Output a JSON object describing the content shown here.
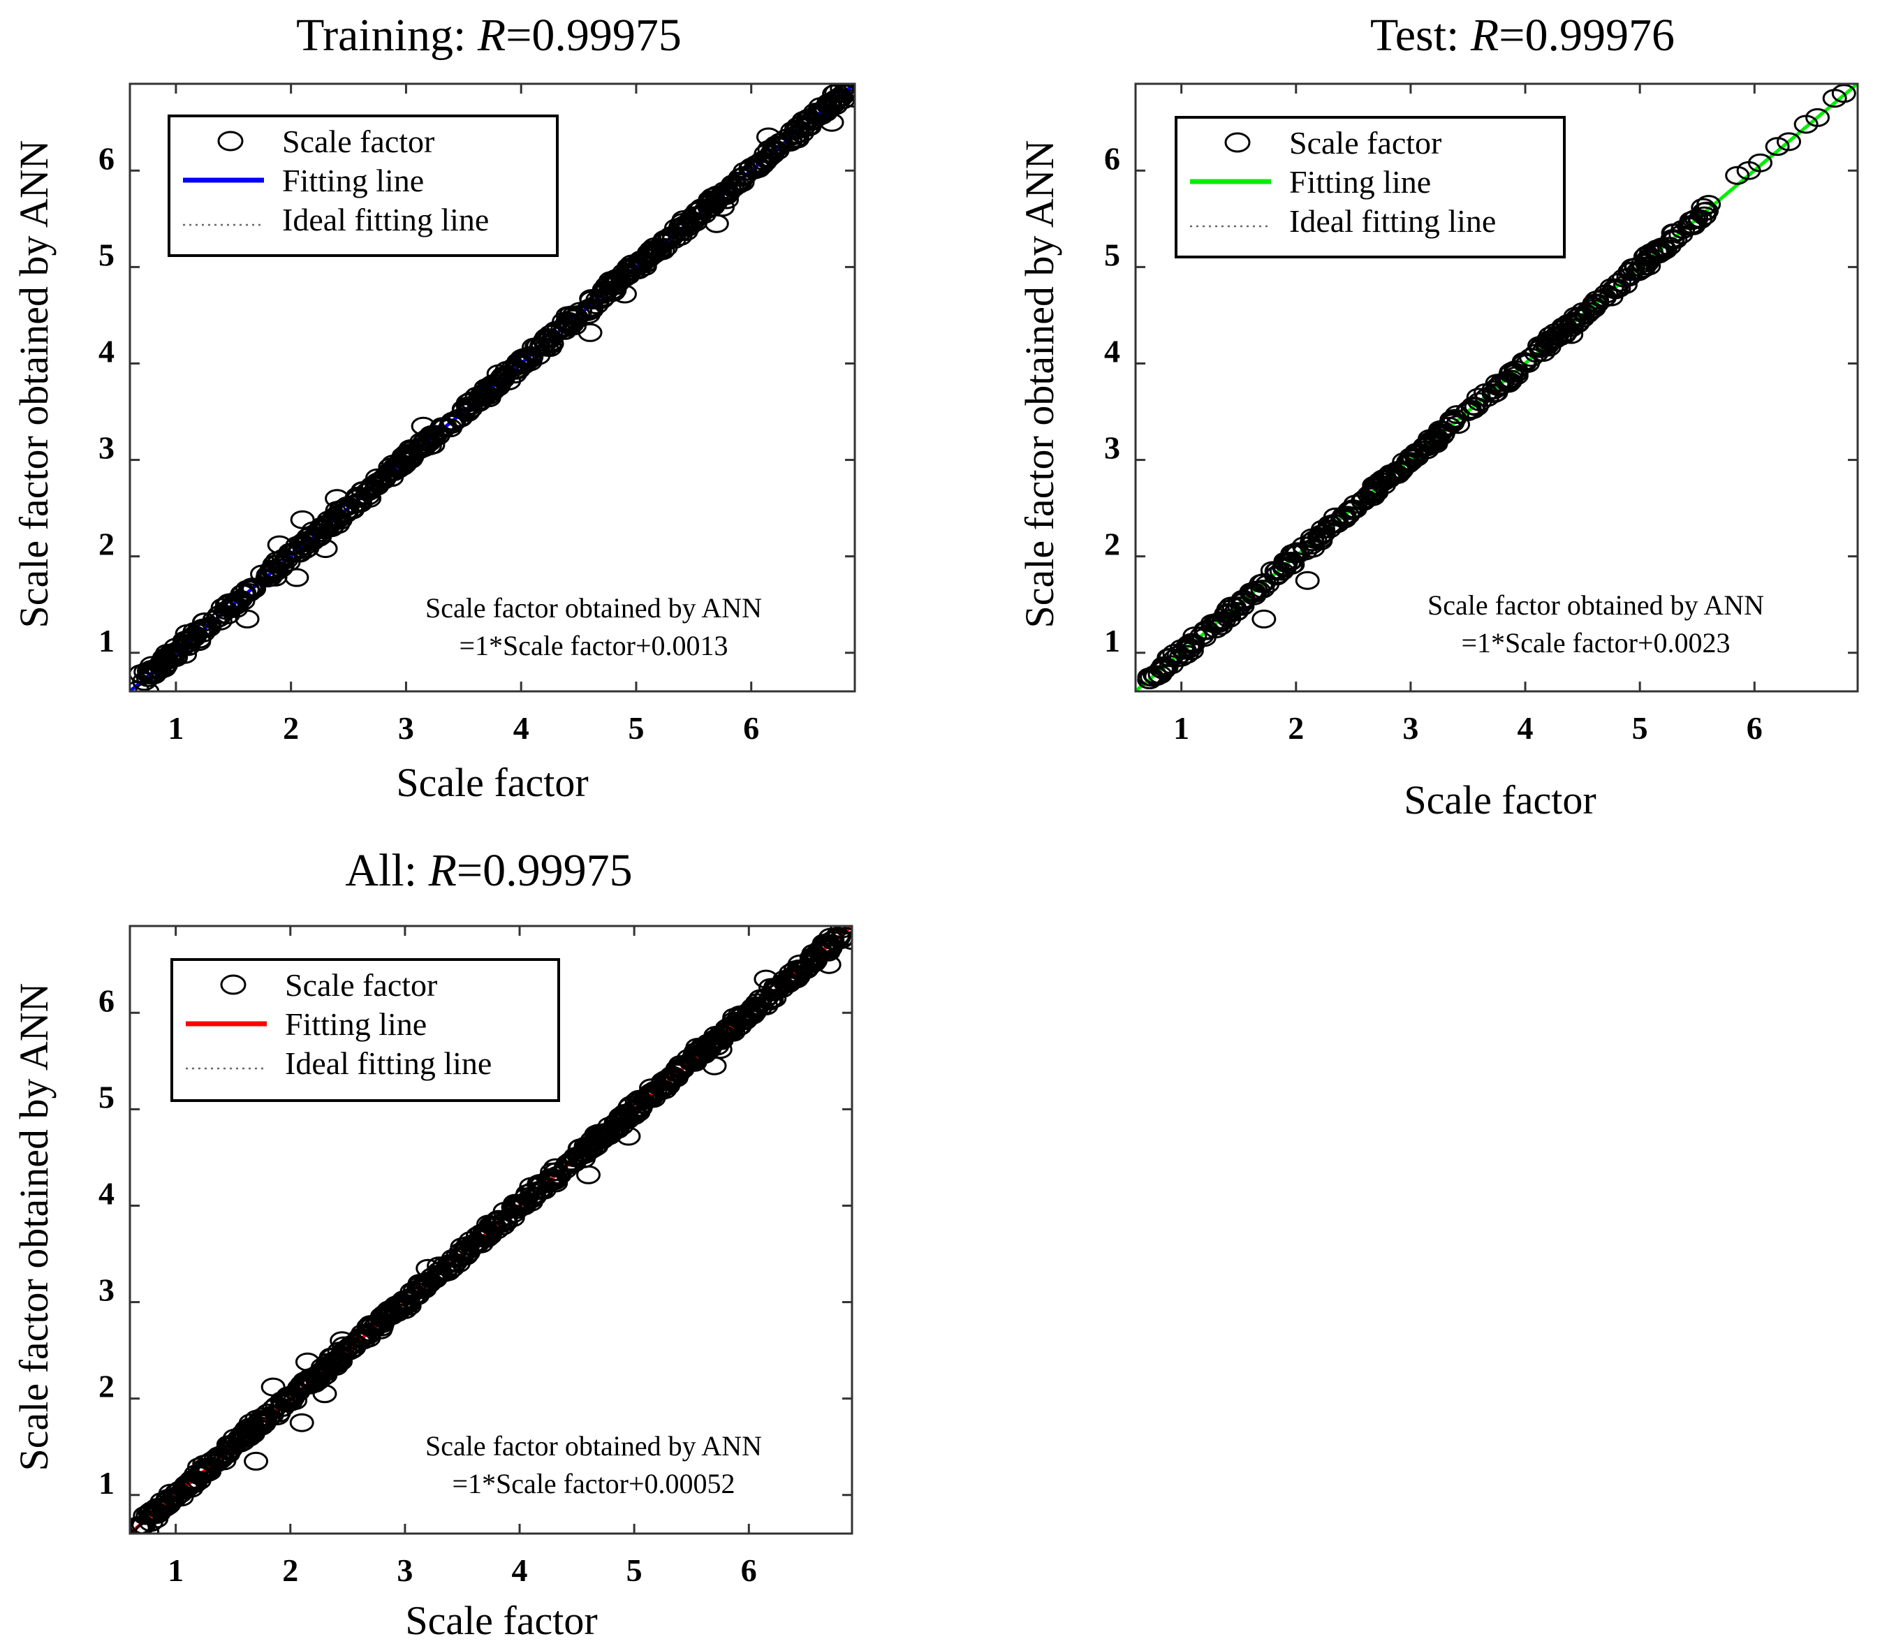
{
  "figure": {
    "background": "#ffffff"
  },
  "chart_data": [
    {
      "id": "training",
      "type": "scatter",
      "title_prefix": "Training: ",
      "title_var": "R",
      "title_value": "=0.99975",
      "xlabel": "Scale factor",
      "ylabel": "Scale factor obtained by ANN",
      "xlim": [
        0.6,
        6.9
      ],
      "ylim": [
        0.6,
        6.9
      ],
      "xticks": [
        1,
        2,
        3,
        4,
        5,
        6
      ],
      "yticks": [
        1,
        2,
        3,
        4,
        5,
        6
      ],
      "legend": {
        "placement": "top-left",
        "entries": [
          {
            "label": "Scale factor",
            "marker": "circle"
          },
          {
            "label": "Fitting line",
            "color": "#0000ff"
          },
          {
            "label": "Ideal fitting line",
            "style": "dotted"
          }
        ]
      },
      "equation": {
        "line1": "Scale factor obtained by ANN",
        "line2": "=1*Scale factor+0.0013"
      },
      "fit": {
        "slope": 1,
        "intercept": 0.0013,
        "color": "#0000ff"
      },
      "points": {
        "x_range": [
          0.65,
          6.85
        ],
        "count": 620,
        "noise": 0.035,
        "seed": 11,
        "outliers": [
          [
            1.62,
            1.35
          ],
          [
            2.05,
            1.78
          ],
          [
            2.1,
            2.38
          ],
          [
            1.9,
            2.12
          ],
          [
            5.75,
            5.62
          ],
          [
            5.7,
            5.45
          ],
          [
            4.6,
            4.32
          ],
          [
            4.9,
            4.72
          ],
          [
            3.15,
            3.35
          ],
          [
            2.4,
            2.6
          ],
          [
            6.15,
            6.35
          ],
          [
            6.7,
            6.5
          ],
          [
            6.9,
            6.75
          ],
          [
            0.75,
            0.6
          ],
          [
            1.25,
            1.32
          ],
          [
            2.3,
            2.08
          ]
        ]
      }
    },
    {
      "id": "test",
      "type": "scatter",
      "title_prefix": "Test: ",
      "title_var": "R",
      "title_value": "=0.99976",
      "xlabel": "Scale factor",
      "ylabel": "Scale factor obtained by ANN",
      "xlim": [
        0.6,
        6.9
      ],
      "ylim": [
        0.6,
        6.9
      ],
      "xticks": [
        1,
        2,
        3,
        4,
        5,
        6
      ],
      "yticks": [
        1,
        2,
        3,
        4,
        5,
        6
      ],
      "legend": {
        "placement": "top-left",
        "entries": [
          {
            "label": "Scale factor",
            "marker": "circle"
          },
          {
            "label": "Fitting line",
            "color": "#00ee00"
          },
          {
            "label": "Ideal fitting line",
            "style": "dotted"
          }
        ]
      },
      "equation": {
        "line1": "Scale factor obtained by ANN",
        "line2": "=1*Scale factor+0.0023"
      },
      "fit": {
        "slope": 1,
        "intercept": 0.0023,
        "color": "#00ee00"
      },
      "points": {
        "x_range": [
          0.7,
          5.6
        ],
        "count": 340,
        "noise": 0.03,
        "seed": 23,
        "outliers": [
          [
            1.72,
            1.35
          ],
          [
            2.1,
            1.75
          ],
          [
            4.4,
            4.3
          ],
          [
            0.72,
            0.72
          ],
          [
            0.85,
            0.85
          ],
          [
            5.85,
            5.95
          ],
          [
            5.95,
            6.0
          ],
          [
            6.05,
            6.08
          ],
          [
            6.2,
            6.25
          ],
          [
            6.3,
            6.3
          ],
          [
            6.45,
            6.48
          ],
          [
            6.55,
            6.55
          ],
          [
            6.7,
            6.75
          ],
          [
            6.78,
            6.8
          ],
          [
            5.45,
            5.48
          ],
          [
            5.6,
            5.65
          ],
          [
            5.3,
            5.35
          ],
          [
            5.1,
            5.15
          ]
        ]
      }
    },
    {
      "id": "all",
      "type": "scatter",
      "title_prefix": "All: ",
      "title_var": "R",
      "title_value": "=0.99975",
      "xlabel": "Scale factor",
      "ylabel": "Scale factor obtained by ANN",
      "xlim": [
        0.6,
        6.9
      ],
      "ylim": [
        0.6,
        6.9
      ],
      "xticks": [
        1,
        2,
        3,
        4,
        5,
        6
      ],
      "yticks": [
        1,
        2,
        3,
        4,
        5,
        6
      ],
      "legend": {
        "placement": "top-left",
        "entries": [
          {
            "label": "Scale factor",
            "marker": "circle"
          },
          {
            "label": "Fitting line",
            "color": "#ff0000"
          },
          {
            "label": "Ideal fitting line",
            "style": "dotted"
          }
        ]
      },
      "equation": {
        "line1": "Scale factor obtained by ANN",
        "line2": "=1*Scale factor+0.00052"
      },
      "fit": {
        "slope": 1,
        "intercept": 0.00052,
        "color": "#ff0000"
      },
      "points": {
        "x_range": [
          0.65,
          6.85
        ],
        "count": 700,
        "noise": 0.035,
        "seed": 37,
        "outliers": [
          [
            1.7,
            1.35
          ],
          [
            2.1,
            1.75
          ],
          [
            2.15,
            2.38
          ],
          [
            1.85,
            2.12
          ],
          [
            5.75,
            5.62
          ],
          [
            5.7,
            5.45
          ],
          [
            4.6,
            4.32
          ],
          [
            4.95,
            4.72
          ],
          [
            3.2,
            3.35
          ],
          [
            2.45,
            2.6
          ],
          [
            6.15,
            6.35
          ],
          [
            6.7,
            6.5
          ],
          [
            6.9,
            6.75
          ],
          [
            0.75,
            0.62
          ],
          [
            1.25,
            1.32
          ],
          [
            2.3,
            2.05
          ]
        ]
      }
    }
  ]
}
